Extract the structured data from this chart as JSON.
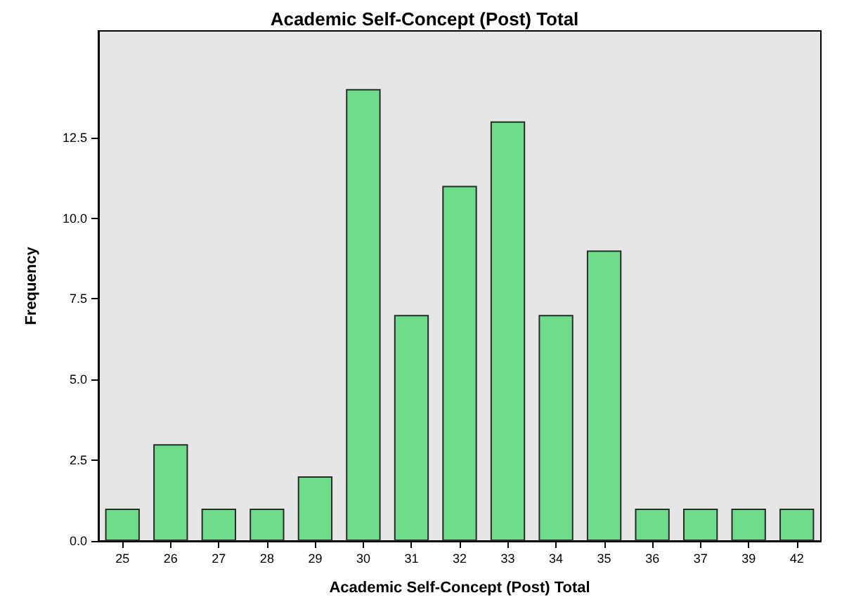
{
  "chart_data": {
    "type": "bar",
    "title": "Academic Self-Concept (Post) Total",
    "xlabel": "Academic Self-Concept (Post) Total",
    "ylabel": "Frequency",
    "categories": [
      "25",
      "26",
      "27",
      "28",
      "29",
      "30",
      "31",
      "32",
      "33",
      "34",
      "35",
      "36",
      "37",
      "39",
      "42"
    ],
    "values": [
      1,
      3,
      1,
      1,
      2,
      14,
      7,
      11,
      13,
      7,
      9,
      1,
      1,
      1,
      1
    ],
    "color": "#6fdc8c",
    "ylim": [
      0,
      15.8
    ],
    "yticks": [
      {
        "value": 0,
        "label": "0.0"
      },
      {
        "value": 2.5,
        "label": "2.5"
      },
      {
        "value": 5,
        "label": "5.0"
      },
      {
        "value": 7.5,
        "label": "7.5"
      },
      {
        "value": 10,
        "label": "10.0"
      },
      {
        "value": 12.5,
        "label": "12.5"
      }
    ],
    "grid": false
  }
}
